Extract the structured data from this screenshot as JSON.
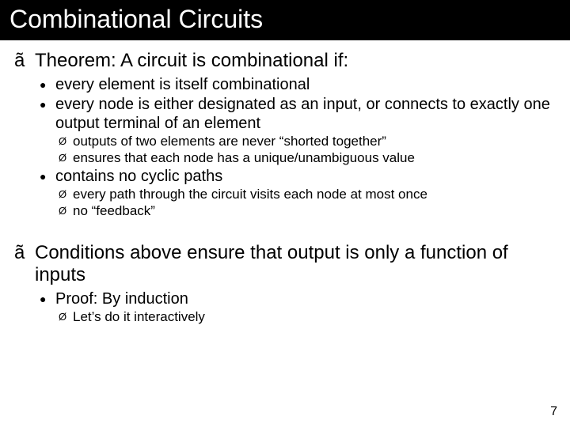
{
  "slide": {
    "title": "Combinational Circuits",
    "pageNumber": "7",
    "background": "#ffffff",
    "titlebar_bg": "#000000",
    "titlebar_fg": "#ffffff",
    "bullets": {
      "l1_glyph": "ã",
      "l2_glyph": "●",
      "l3_glyph": "Ø"
    },
    "items": [
      {
        "level": 1,
        "text": "Theorem:  A circuit is combinational if:"
      },
      {
        "level": 2,
        "text": "every element is itself combinational"
      },
      {
        "level": 2,
        "text": "every node is either designated as an input, or connects to exactly one output terminal of an element"
      },
      {
        "level": 3,
        "text": "outputs of two elements are never “shorted together”"
      },
      {
        "level": 3,
        "text": "ensures that each node has a unique/unambiguous value"
      },
      {
        "level": 2,
        "text": "contains no cyclic paths"
      },
      {
        "level": 3,
        "text": "every path through the circuit visits each node at most once"
      },
      {
        "level": 3,
        "text": "no “feedback”"
      },
      {
        "level": 0,
        "gap": true
      },
      {
        "level": 1,
        "text": "Conditions above ensure that output is only a function of inputs"
      },
      {
        "level": 2,
        "text": "Proof:  By induction"
      },
      {
        "level": 3,
        "text": "Let’s do it interactively"
      }
    ]
  }
}
